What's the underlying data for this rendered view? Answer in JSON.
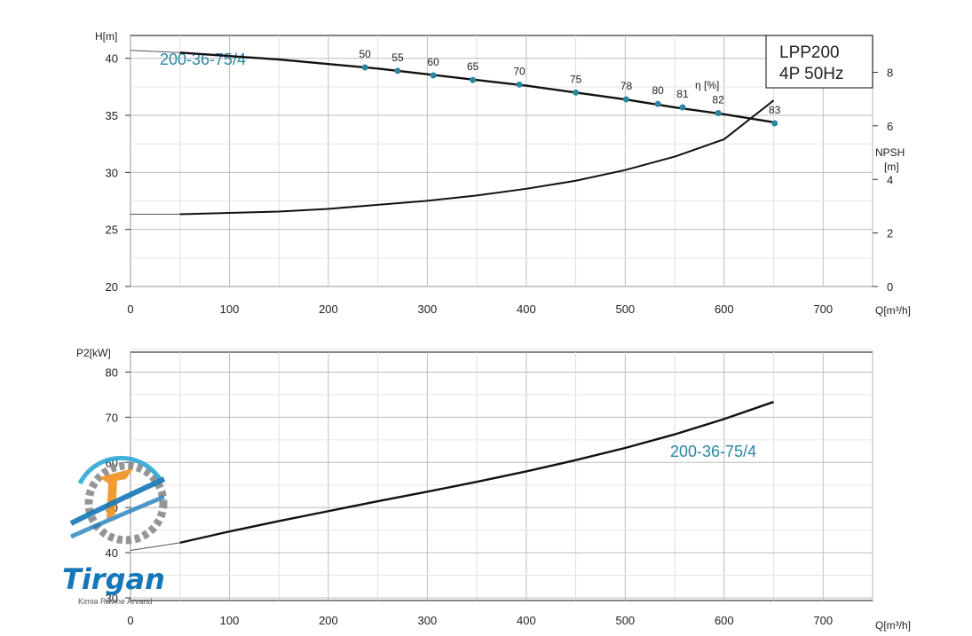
{
  "chart_data": [
    {
      "type": "line",
      "model_box": {
        "line1": "LPP200",
        "line2": "4P  50Hz"
      },
      "series_label": "200-36-75/4",
      "ylabel": "H[m]",
      "xlabel": "Q[m³/h]",
      "xlim": [
        0,
        750
      ],
      "ylim": [
        20,
        42
      ],
      "x_ticks": [
        "0",
        "100",
        "200",
        "300",
        "400",
        "500",
        "600",
        "700"
      ],
      "y_ticks": [
        "20",
        "25",
        "30",
        "35",
        "40"
      ],
      "grid": true,
      "head_curve": {
        "x": [
          0,
          50,
          100,
          150,
          200,
          250,
          300,
          350,
          400,
          450,
          500,
          550,
          600,
          650
        ],
        "y": [
          40.7,
          40.5,
          40.2,
          39.9,
          39.5,
          39.1,
          38.6,
          38.1,
          37.6,
          37.0,
          36.4,
          35.7,
          35.1,
          34.4
        ]
      },
      "efficiency_label": "η [%]",
      "efficiency_points": [
        {
          "q": 237,
          "h": 39.2,
          "label": "50"
        },
        {
          "q": 270,
          "h": 38.9,
          "label": "55"
        },
        {
          "q": 306,
          "h": 38.5,
          "label": "60"
        },
        {
          "q": 346,
          "h": 38.1,
          "label": "65"
        },
        {
          "q": 393,
          "h": 37.7,
          "label": "70"
        },
        {
          "q": 450,
          "h": 37.0,
          "label": "75"
        },
        {
          "q": 501,
          "h": 36.4,
          "label": "78"
        },
        {
          "q": 533,
          "h": 36.0,
          "label": "80"
        },
        {
          "q": 558,
          "h": 35.7,
          "label": "81"
        },
        {
          "q": 594,
          "h": 35.2,
          "label": "82"
        },
        {
          "q": 651,
          "h": 34.3,
          "label": "83"
        }
      ],
      "npsh_axis": {
        "label_line1": "NPSH",
        "label_line2": "[m]",
        "ylim": [
          0,
          9
        ],
        "ticks": [
          "0",
          "2",
          "4",
          "6",
          "8"
        ]
      },
      "npsh_curve": {
        "x": [
          0,
          50,
          100,
          150,
          200,
          250,
          300,
          350,
          400,
          450,
          500,
          550,
          600,
          650
        ],
        "y": [
          2.7,
          2.7,
          2.75,
          2.8,
          2.9,
          3.05,
          3.2,
          3.4,
          3.65,
          3.95,
          4.35,
          4.85,
          5.5,
          6.95
        ]
      }
    },
    {
      "type": "line",
      "series_label": "200-36-75/4",
      "ylabel": "P2[kW]",
      "xlabel": "Q[m³/h]",
      "xlim": [
        0,
        750
      ],
      "ylim": [
        30,
        85
      ],
      "x_ticks": [
        "0",
        "100",
        "200",
        "300",
        "400",
        "500",
        "600",
        "700"
      ],
      "y_ticks": [
        "30",
        "40",
        "50",
        "60",
        "70",
        "80"
      ],
      "grid": true,
      "power_curve": {
        "x": [
          0,
          50,
          100,
          150,
          200,
          250,
          300,
          350,
          400,
          450,
          500,
          550,
          600,
          650
        ],
        "y": [
          40.5,
          42.2,
          44.7,
          47.0,
          49.2,
          51.4,
          53.5,
          55.7,
          58.0,
          60.5,
          63.2,
          66.2,
          69.6,
          73.4
        ]
      }
    }
  ],
  "logo": {
    "name": "Tirgan",
    "subtitle": "Kimia Ravine Arvand"
  },
  "colors": {
    "accent": "#2b86a0",
    "curve": "#111111",
    "grid": "#c8c8c8",
    "axis": "#333333",
    "logo_blue": "#1477b8",
    "logo_orange": "#f0962a",
    "logo_gray": "#8a8a8a"
  }
}
